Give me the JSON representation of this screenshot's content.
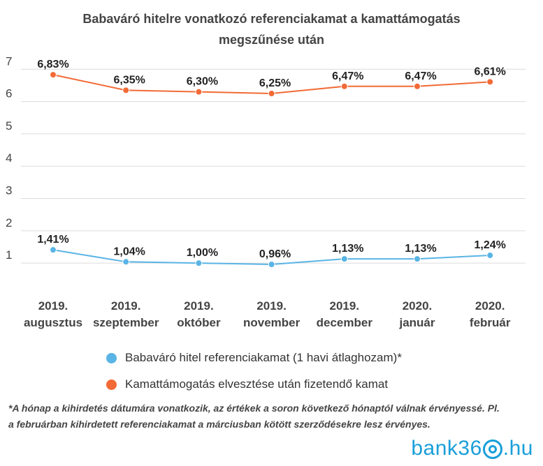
{
  "chart_data": {
    "type": "line",
    "title_line1": "Babaváró hitelre vonatkozó referenciakamat a kamattámogatás",
    "title_line2": "megszűnése után",
    "categories": [
      [
        "2019.",
        "augusztus"
      ],
      [
        "2019.",
        "szeptember"
      ],
      [
        "2019.",
        "október"
      ],
      [
        "2019.",
        "november"
      ],
      [
        "2019.",
        "december"
      ],
      [
        "2020.",
        "január"
      ],
      [
        "2020.",
        "február"
      ]
    ],
    "y_ticks": [
      "1",
      "2",
      "3",
      "4",
      "5",
      "6",
      "7"
    ],
    "ylim": [
      0.55,
      7.2
    ],
    "grid": true,
    "legend_position": "bottom",
    "series": [
      {
        "name": "Babaváró hitel referenciakamat (1 havi átlaghozam)*",
        "color": "#5ab4e5",
        "values": [
          1.41,
          1.04,
          1.0,
          0.96,
          1.13,
          1.13,
          1.24
        ],
        "labels": [
          "1,41%",
          "1,04%",
          "1,00%",
          "0,96%",
          "1,13%",
          "1,13%",
          "1,24%"
        ]
      },
      {
        "name": "Kamattámogatás elvesztése után fizetendő kamat",
        "color": "#f26a36",
        "values": [
          6.83,
          6.35,
          6.3,
          6.25,
          6.47,
          6.47,
          6.61
        ],
        "labels": [
          "6,83%",
          "6,35%",
          "6,30%",
          "6,25%",
          "6,47%",
          "6,47%",
          "6,61%"
        ]
      }
    ]
  },
  "footnote": {
    "line1": "*A hónap a kihirdetés dátumára vonatkozik, az értékek a soron következő hónaptól válnak érvényessé. Pl.",
    "line2": "a februárban kihirdetett referenciakamat a márciusban kötött szerződésekre lesz érvényes."
  },
  "logo": {
    "part1": "bank36",
    "part2": ".hu"
  }
}
